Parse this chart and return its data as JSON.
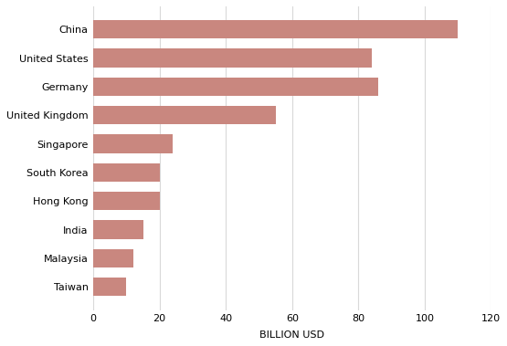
{
  "countries": [
    "Taiwan",
    "Malaysia",
    "India",
    "Hong Kong",
    "South Korea",
    "Singapore",
    "United Kingdom",
    "Germany",
    "United States",
    "China"
  ],
  "values": [
    10,
    12,
    15,
    20,
    20,
    24,
    55,
    86,
    84,
    110
  ],
  "bar_color": "#c9877f",
  "xlabel": "BILLION USD",
  "xlim": [
    0,
    120
  ],
  "xticks": [
    0,
    20,
    40,
    60,
    80,
    100,
    120
  ],
  "background_color": "#ffffff",
  "bar_height": 0.65,
  "xlabel_fontsize": 8,
  "tick_fontsize": 8,
  "ytick_fontsize": 8,
  "grid_color": "#d9d9d9",
  "figsize": [
    5.55,
    3.79
  ],
  "dpi": 100
}
